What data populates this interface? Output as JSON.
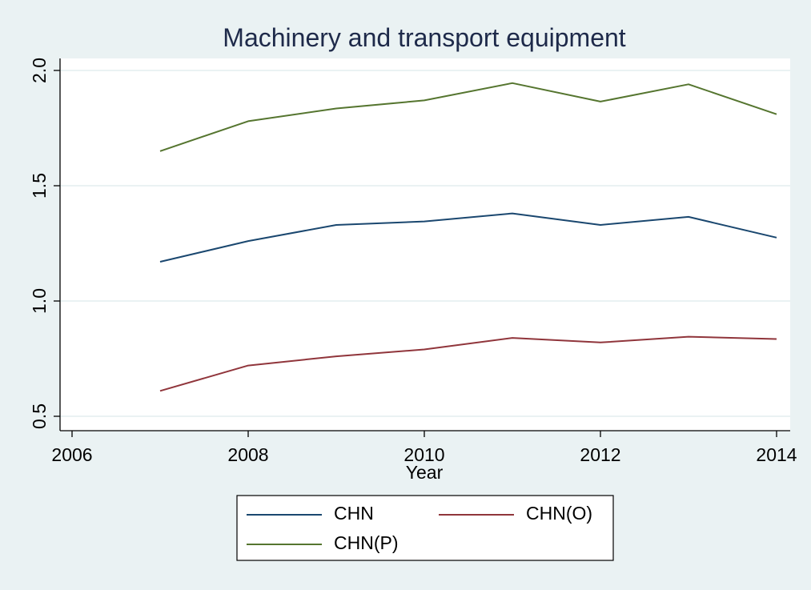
{
  "chart_data": {
    "type": "line",
    "title": "Machinery and transport equipment",
    "xlabel": "Year",
    "ylabel": "",
    "xlim": [
      2006,
      2014
    ],
    "ylim": [
      0.5,
      2.0
    ],
    "x_ticks": [
      2006,
      2008,
      2010,
      2012,
      2014
    ],
    "y_ticks": [
      0.5,
      1.0,
      1.5,
      2.0
    ],
    "x_tick_labels": [
      "2006",
      "2008",
      "2010",
      "2012",
      "2014"
    ],
    "y_tick_labels": [
      "0.5",
      "1.0",
      "1.5",
      "2.0"
    ],
    "grid": true,
    "legend_position": "bottom",
    "x": [
      2007,
      2008,
      2009,
      2010,
      2011,
      2012,
      2013,
      2014
    ],
    "series": [
      {
        "name": "CHN",
        "color": "#1a476f",
        "values": [
          1.17,
          1.26,
          1.33,
          1.345,
          1.38,
          1.33,
          1.365,
          1.275
        ]
      },
      {
        "name": "CHN(O)",
        "color": "#90353b",
        "values": [
          0.61,
          0.72,
          0.76,
          0.79,
          0.84,
          0.82,
          0.845,
          0.835
        ]
      },
      {
        "name": "CHN(P)",
        "color": "#55752f",
        "values": [
          1.65,
          1.78,
          1.835,
          1.87,
          1.945,
          1.865,
          1.94,
          1.81
        ]
      }
    ]
  }
}
